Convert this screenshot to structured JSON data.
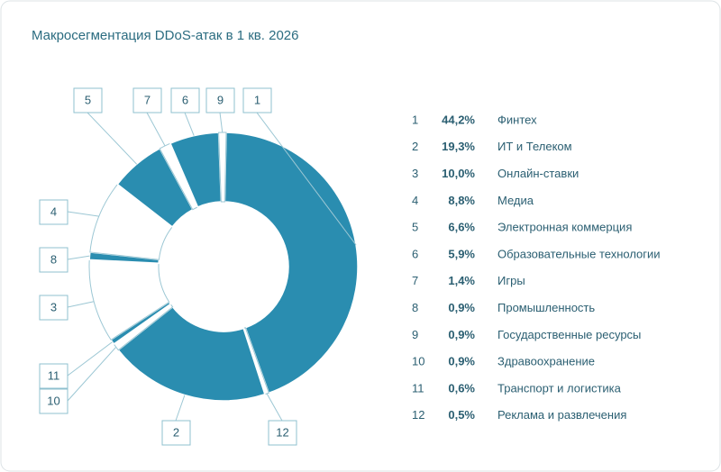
{
  "chart_data": {
    "type": "donut",
    "title": "Макросегментация DDoS-атак в 1 кв. 2026",
    "labels": [
      "1",
      "12",
      "2",
      "10",
      "11",
      "3",
      "8",
      "4",
      "5",
      "7",
      "6",
      "9"
    ],
    "categories": [
      "Финтех",
      "Реклама и развлечения",
      "ИТ и Телеком",
      "Здравоохранение",
      "Транспорт и логистика",
      "Онлайн-ставки",
      "Промышленность",
      "Медиа",
      "Электронная коммерция",
      "Игры",
      "Образовательные технологии",
      "Государственные ресурсы"
    ],
    "values": [
      44.2,
      0.5,
      19.3,
      0.9,
      0.6,
      10.0,
      0.9,
      8.8,
      6.6,
      1.4,
      5.9,
      0.9
    ],
    "value_labels": [
      "44,2%",
      "0,5%",
      "19,3%",
      "0,9%",
      "0,6%",
      "10,0%",
      "0,9%",
      "8,8%",
      "6,6%",
      "1,4%",
      "5,9%",
      "0,9%"
    ],
    "colors": [
      "#2a8db0",
      "#ffffff",
      "#2a8db0",
      "#ffffff",
      "#2a8db0",
      "#ffffff",
      "#2a8db0",
      "#ffffff",
      "#2a8db0",
      "#ffffff",
      "#2a8db0",
      "#ffffff"
    ]
  }
}
